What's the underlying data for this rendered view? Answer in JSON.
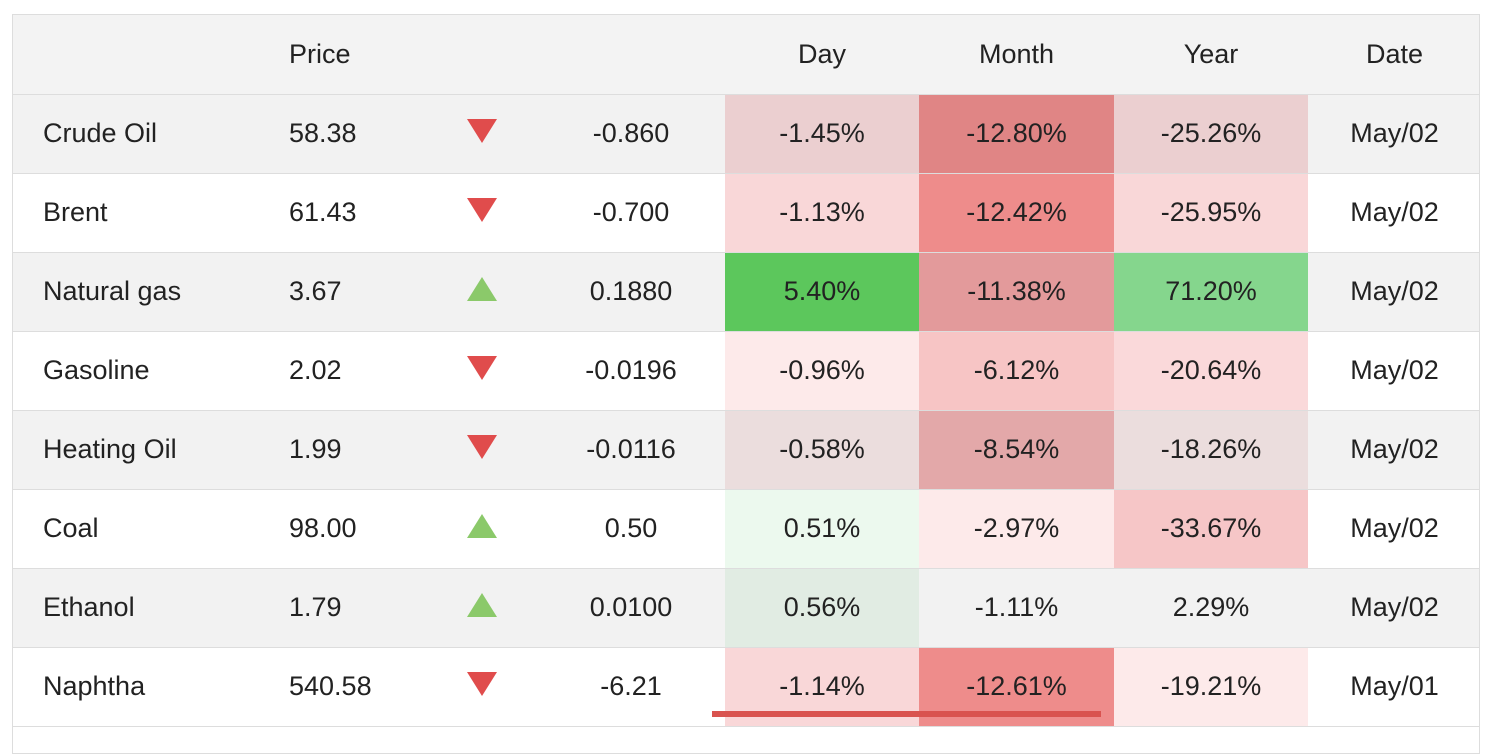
{
  "headers": {
    "name": "",
    "price": "Price",
    "arrow": "",
    "change": "",
    "day": "Day",
    "month": "Month",
    "year": "Year",
    "date": "Date"
  },
  "colors": {
    "down_arrow": "#e04c4c",
    "up_arrow": "#8bc96a"
  },
  "rows": [
    {
      "name": "Crude Oil",
      "price": "58.38",
      "direction": "down",
      "direction_icon": "triangle-down-icon",
      "change": "-0.860",
      "day": "-1.45%",
      "day_bg": "#ebcfd0",
      "month": "-12.80%",
      "month_bg": "#e08585",
      "year": "-25.26%",
      "year_bg": "#ebcfd0",
      "date": "May/02"
    },
    {
      "name": "Brent",
      "price": "61.43",
      "direction": "down",
      "direction_icon": "triangle-down-icon",
      "change": "-0.700",
      "day": "-1.13%",
      "day_bg": "#f9d7d8",
      "month": "-12.42%",
      "month_bg": "#ee8c8b",
      "year": "-25.95%",
      "year_bg": "#f9d7d8",
      "date": "May/02"
    },
    {
      "name": "Natural gas",
      "price": "3.67",
      "direction": "up",
      "direction_icon": "triangle-up-icon",
      "change": "0.1880",
      "day": "5.40%",
      "day_bg": "#5cc75c",
      "month": "-11.38%",
      "month_bg": "#e39a9b",
      "year": "71.20%",
      "year_bg": "#85d68d",
      "date": "May/02"
    },
    {
      "name": "Gasoline",
      "price": "2.02",
      "direction": "down",
      "direction_icon": "triangle-down-icon",
      "change": "-0.0196",
      "day": "-0.96%",
      "day_bg": "#fdeaea",
      "month": "-6.12%",
      "month_bg": "#f7c5c5",
      "year": "-20.64%",
      "year_bg": "#fad9da",
      "date": "May/02"
    },
    {
      "name": "Heating Oil",
      "price": "1.99",
      "direction": "down",
      "direction_icon": "triangle-down-icon",
      "change": "-0.0116",
      "day": "-0.58%",
      "day_bg": "#ebdddd",
      "month": "-8.54%",
      "month_bg": "#e3a8a9",
      "year": "-18.26%",
      "year_bg": "#ebdddd",
      "date": "May/02"
    },
    {
      "name": "Coal",
      "price": "98.00",
      "direction": "up",
      "direction_icon": "triangle-up-icon",
      "change": "0.50",
      "day": "0.51%",
      "day_bg": "#ecf9ee",
      "month": "-2.97%",
      "month_bg": "#fdeaea",
      "year": "-33.67%",
      "year_bg": "#f6c6c7",
      "date": "May/02"
    },
    {
      "name": "Ethanol",
      "price": "1.79",
      "direction": "up",
      "direction_icon": "triangle-up-icon",
      "change": "0.0100",
      "day": "0.56%",
      "day_bg": "#e1ece3",
      "month": "-1.11%",
      "month_bg": "",
      "year": "2.29%",
      "year_bg": "",
      "date": "May/02"
    },
    {
      "name": "Naphtha",
      "price": "540.58",
      "direction": "down",
      "direction_icon": "triangle-down-icon",
      "change": "-6.21",
      "day": "-1.14%",
      "day_bg": "#f9d7d8",
      "month": "-12.61%",
      "month_bg": "#ee8c8b",
      "year": "-19.21%",
      "year_bg": "#fdeaea",
      "date": "May/01"
    }
  ]
}
